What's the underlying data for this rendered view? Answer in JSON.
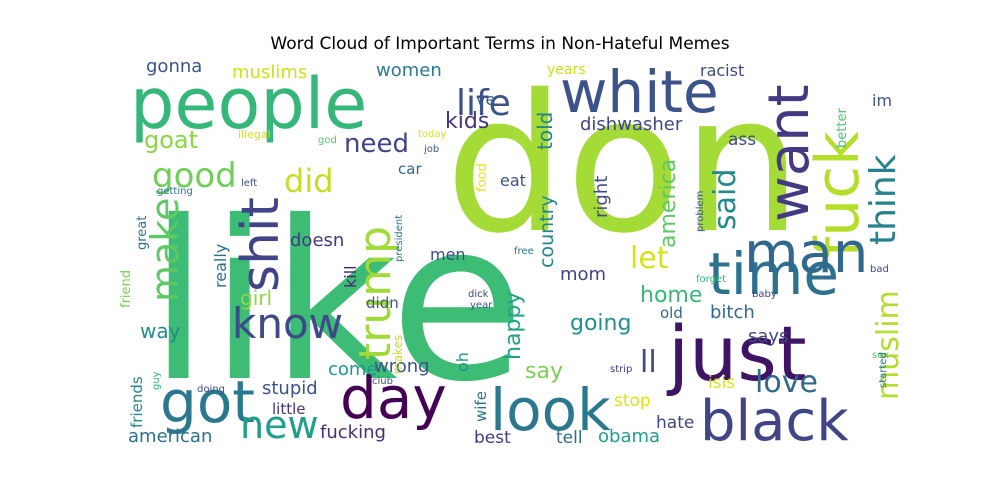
{
  "chart_data": {
    "type": "wordcloud",
    "title": "Word Cloud of Important Terms in Non-Hateful Memes",
    "words": [
      {
        "text": "like",
        "weight": 100,
        "color": "#3cbc75"
      },
      {
        "text": "don",
        "weight": 92,
        "color": "#a5db36"
      },
      {
        "text": "people",
        "weight": 55,
        "color": "#35b779"
      },
      {
        "text": "white",
        "weight": 45,
        "color": "#3b528b"
      },
      {
        "text": "just",
        "weight": 55,
        "color": "#3f1465"
      },
      {
        "text": "time",
        "weight": 45,
        "color": "#2c728e"
      },
      {
        "text": "black",
        "weight": 45,
        "color": "#414487"
      },
      {
        "text": "look",
        "weight": 45,
        "color": "#29788e"
      },
      {
        "text": "day",
        "weight": 45,
        "color": "#440154"
      },
      {
        "text": "got",
        "weight": 42,
        "color": "#2a788e"
      },
      {
        "text": "fuck",
        "weight": 40,
        "color": "#b5de2b"
      },
      {
        "text": "want",
        "weight": 38,
        "color": "#443a83"
      },
      {
        "text": "man",
        "weight": 36,
        "color": "#31688e"
      },
      {
        "text": "shit",
        "weight": 34,
        "color": "#414487"
      },
      {
        "text": "trump",
        "weight": 32,
        "color": "#a0da39"
      },
      {
        "text": "know",
        "weight": 30,
        "color": "#3e4989"
      },
      {
        "text": "make",
        "weight": 28,
        "color": "#5ec962"
      },
      {
        "text": "new",
        "weight": 28,
        "color": "#1f9e89"
      },
      {
        "text": "good",
        "weight": 26,
        "color": "#70cf57"
      },
      {
        "text": "life",
        "weight": 26,
        "color": "#3b528b"
      },
      {
        "text": "think",
        "weight": 26,
        "color": "#26828e"
      },
      {
        "text": "did",
        "weight": 24,
        "color": "#c2df23"
      },
      {
        "text": "muslim",
        "weight": 22,
        "color": "#b2dd2d"
      },
      {
        "text": "love",
        "weight": 22,
        "color": "#31688e"
      },
      {
        "text": "said",
        "weight": 22,
        "color": "#23898e"
      },
      {
        "text": "let",
        "weight": 22,
        "color": "#d8e219"
      },
      {
        "text": "ll",
        "weight": 22,
        "color": "#3e4989"
      },
      {
        "text": "need",
        "weight": 20,
        "color": "#414487"
      },
      {
        "text": "goat",
        "weight": 20,
        "color": "#8bd646"
      },
      {
        "text": "america",
        "weight": 18,
        "color": "#5ec962"
      },
      {
        "text": "happy",
        "weight": 18,
        "color": "#20a486"
      },
      {
        "text": "going",
        "weight": 18,
        "color": "#21918c"
      },
      {
        "text": "kids",
        "weight": 18,
        "color": "#46337e"
      },
      {
        "text": "home",
        "weight": 17,
        "color": "#38b977"
      },
      {
        "text": "say",
        "weight": 17,
        "color": "#7ad151"
      },
      {
        "text": "way",
        "weight": 16,
        "color": "#238a8d"
      },
      {
        "text": "girl",
        "weight": 16,
        "color": "#90d743"
      },
      {
        "text": "told",
        "weight": 16,
        "color": "#25838e"
      },
      {
        "text": "country",
        "weight": 15,
        "color": "#23888e"
      },
      {
        "text": "dishwasher",
        "weight": 15,
        "color": "#404688"
      },
      {
        "text": "women",
        "weight": 15,
        "color": "#287c8e"
      },
      {
        "text": "muslims",
        "weight": 15,
        "color": "#cde11d"
      },
      {
        "text": "gonna",
        "weight": 15,
        "color": "#3b528b"
      },
      {
        "text": "fucking",
        "weight": 15,
        "color": "#472c7a"
      },
      {
        "text": "american",
        "weight": 15,
        "color": "#2c728e"
      },
      {
        "text": "obama",
        "weight": 15,
        "color": "#1fa187"
      },
      {
        "text": "bitch",
        "weight": 15,
        "color": "#31688e"
      },
      {
        "text": "stupid",
        "weight": 15,
        "color": "#3b528b"
      },
      {
        "text": "come",
        "weight": 15,
        "color": "#1f988b"
      },
      {
        "text": "wrong",
        "weight": 14,
        "color": "#3b528b"
      },
      {
        "text": "doesn",
        "weight": 14,
        "color": "#443983"
      },
      {
        "text": "says",
        "weight": 14,
        "color": "#3e4989"
      },
      {
        "text": "mom",
        "weight": 14,
        "color": "#414487"
      },
      {
        "text": "right",
        "weight": 14,
        "color": "#3e4c8a"
      },
      {
        "text": "isis",
        "weight": 14,
        "color": "#d8e219"
      },
      {
        "text": "stop",
        "weight": 14,
        "color": "#dde318"
      },
      {
        "text": "hate",
        "weight": 14,
        "color": "#3f4788"
      },
      {
        "text": "tell",
        "weight": 14,
        "color": "#2f6c8e"
      },
      {
        "text": "best",
        "weight": 14,
        "color": "#453781"
      },
      {
        "text": "ve",
        "weight": 14,
        "color": "#365c8d"
      },
      {
        "text": "ass",
        "weight": 14,
        "color": "#3e4989"
      },
      {
        "text": "racist",
        "weight": 13,
        "color": "#3e4989"
      },
      {
        "text": "im",
        "weight": 13,
        "color": "#3b528b"
      },
      {
        "text": "kill",
        "weight": 13,
        "color": "#482475"
      },
      {
        "text": "really",
        "weight": 13,
        "color": "#2e6e8e"
      },
      {
        "text": "friends",
        "weight": 13,
        "color": "#25858e"
      },
      {
        "text": "little",
        "weight": 13,
        "color": "#46307e"
      },
      {
        "text": "men",
        "weight": 13,
        "color": "#3e4a89"
      },
      {
        "text": "eat",
        "weight": 13,
        "color": "#3b528b"
      },
      {
        "text": "oh",
        "weight": 13,
        "color": "#20928c"
      },
      {
        "text": "wife",
        "weight": 13,
        "color": "#2d718e"
      },
      {
        "text": "car",
        "weight": 12,
        "color": "#30678d"
      },
      {
        "text": "didn",
        "weight": 12,
        "color": "#3b528b"
      },
      {
        "text": "old",
        "weight": 12,
        "color": "#31678e"
      },
      {
        "text": "years",
        "weight": 11,
        "color": "#c8e020"
      },
      {
        "text": "better",
        "weight": 11,
        "color": "#4ac16d"
      },
      {
        "text": "food",
        "weight": 11,
        "color": "#e5e419"
      },
      {
        "text": "great",
        "weight": 11,
        "color": "#2c718e"
      },
      {
        "text": "friend",
        "weight": 11,
        "color": "#7ad151"
      },
      {
        "text": "makes",
        "weight": 10,
        "color": "#c2df23"
      },
      {
        "text": "illegal",
        "weight": 9,
        "color": "#d2e21b"
      },
      {
        "text": "god",
        "weight": 9,
        "color": "#54c568"
      },
      {
        "text": "today",
        "weight": 9,
        "color": "#d8e219"
      },
      {
        "text": "job",
        "weight": 9,
        "color": "#3b528b"
      },
      {
        "text": "getting",
        "weight": 9,
        "color": "#2a768e"
      },
      {
        "text": "left",
        "weight": 9,
        "color": "#3e4989"
      },
      {
        "text": "president",
        "weight": 9,
        "color": "#2c728e"
      },
      {
        "text": "bad",
        "weight": 9,
        "color": "#3e4989"
      },
      {
        "text": "problem",
        "weight": 9,
        "color": "#3b528b"
      },
      {
        "text": "forget",
        "weight": 9,
        "color": "#2fb47c"
      },
      {
        "text": "free",
        "weight": 9,
        "color": "#2c728e"
      },
      {
        "text": "dick",
        "weight": 9,
        "color": "#404688"
      },
      {
        "text": "year",
        "weight": 9,
        "color": "#3b528b"
      },
      {
        "text": "baby",
        "weight": 9,
        "color": "#3e4989"
      },
      {
        "text": "strip",
        "weight": 9,
        "color": "#443983"
      },
      {
        "text": "club",
        "weight": 9,
        "color": "#3b528b"
      },
      {
        "text": "sex",
        "weight": 9,
        "color": "#4ac16d"
      },
      {
        "text": "started",
        "weight": 9,
        "color": "#2c728e"
      },
      {
        "text": "guy",
        "weight": 9,
        "color": "#2fb47c"
      },
      {
        "text": "doing",
        "weight": 9,
        "color": "#3e4989"
      }
    ]
  }
}
